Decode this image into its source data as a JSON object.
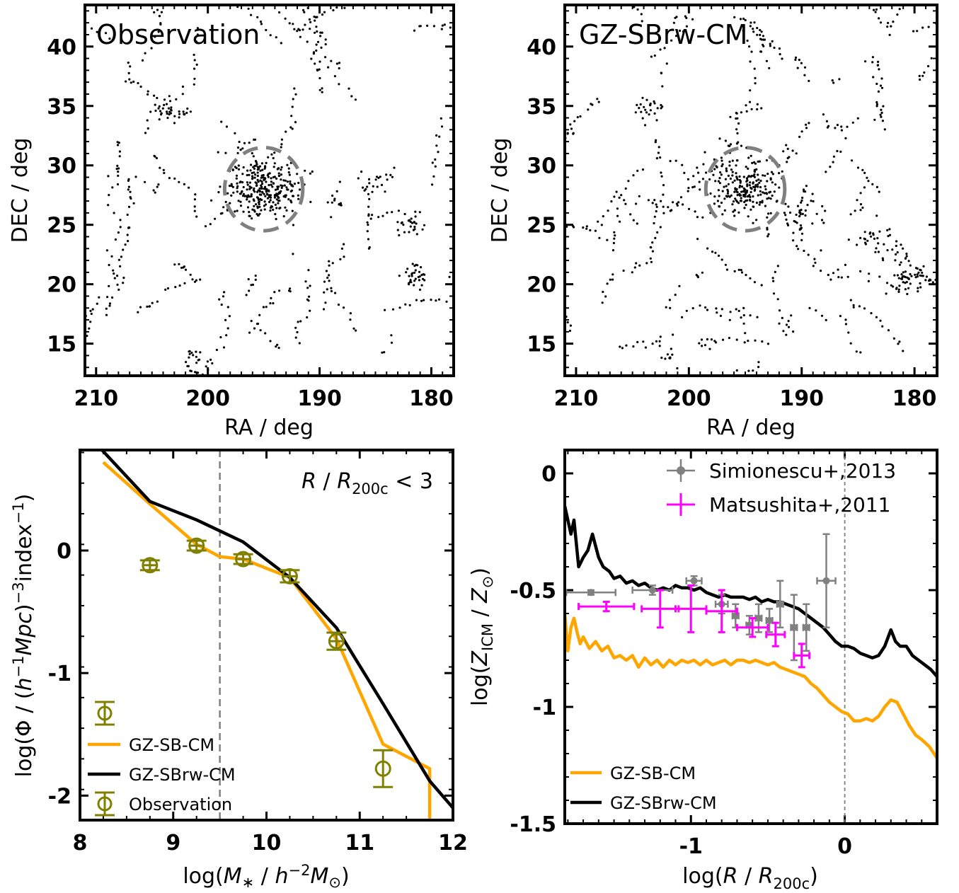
{
  "figure": {
    "panels": {
      "obs_map": {
        "title": "Observation"
      },
      "model_map": {
        "title": "GZ-SBrw-CM"
      },
      "smf": {
        "annotation": "R / R200c < 3"
      },
      "metal": {}
    }
  },
  "chart_data": [
    {
      "id": "obs_map",
      "type": "scatter",
      "title": "Observation",
      "xlabel": "RA / deg",
      "ylabel": "DEC / deg",
      "xlim": [
        211,
        178
      ],
      "ylim": [
        12.3,
        43.5
      ],
      "xticks": [
        210,
        200,
        190,
        180
      ],
      "yticks": [
        15,
        20,
        25,
        30,
        35,
        40
      ],
      "circle": {
        "center": [
          195,
          28
        ],
        "radius": 3.5,
        "style": "dashed",
        "color": "#808080"
      },
      "clusters": [
        {
          "center": [
            195,
            28
          ],
          "n": 260,
          "spread": 1.3
        },
        {
          "center": [
            203.5,
            34.5
          ],
          "n": 30,
          "spread": 0.6
        },
        {
          "center": [
            181.5,
            20.7
          ],
          "n": 30,
          "spread": 0.5
        },
        {
          "center": [
            182,
            25.2
          ],
          "n": 22,
          "spread": 0.5
        },
        {
          "center": [
            185,
            28.5
          ],
          "n": 20,
          "spread": 0.5
        },
        {
          "center": [
            201,
            13.8
          ],
          "n": 14,
          "spread": 0.4
        },
        {
          "center": [
            188.5,
            26.8
          ],
          "n": 12,
          "spread": 0.4
        }
      ],
      "field_points": 520,
      "color": "#000000"
    },
    {
      "id": "model_map",
      "type": "scatter",
      "title": "GZ-SBrw-CM",
      "xlabel": "RA / deg",
      "ylabel": "DEC / deg",
      "xlim": [
        211,
        178
      ],
      "ylim": [
        12.3,
        43.5
      ],
      "xticks": [
        210,
        200,
        190,
        180
      ],
      "yticks": [
        15,
        20,
        25,
        30,
        35,
        40
      ],
      "circle": {
        "center": [
          195,
          28
        ],
        "radius": 3.5,
        "style": "dashed",
        "color": "#808080"
      },
      "clusters": [
        {
          "center": [
            195,
            28
          ],
          "n": 200,
          "spread": 1.1
        },
        {
          "center": [
            203.5,
            34.8
          ],
          "n": 25,
          "spread": 0.5
        },
        {
          "center": [
            181,
            20.3
          ],
          "n": 45,
          "spread": 0.7
        },
        {
          "center": [
            183.5,
            23.5
          ],
          "n": 25,
          "spread": 0.8
        },
        {
          "center": [
            190,
            26
          ],
          "n": 40,
          "spread": 1.2
        },
        {
          "center": [
            201.5,
            13.8
          ],
          "n": 10,
          "spread": 0.4
        }
      ],
      "field_points": 600,
      "color": "#000000"
    },
    {
      "id": "smf",
      "type": "line",
      "xlabel": "log(M* / h^-2 M⊙)",
      "ylabel": "log(Φ / (h^-1 Mpc)^-3 index^-1)",
      "xlim": [
        8,
        12
      ],
      "ylim": [
        -2.2,
        0.82
      ],
      "xticks": [
        8,
        9,
        10,
        11,
        12
      ],
      "yticks": [
        0,
        -1,
        -2
      ],
      "vline": {
        "x": 9.5,
        "style": "dashed",
        "color": "#808080"
      },
      "series": [
        {
          "name": "GZ-SB-CM",
          "color": "#FFA500",
          "x": [
            8.25,
            8.75,
            9.25,
            9.5,
            9.75,
            10.25,
            10.75,
            11.25,
            11.75,
            11.75
          ],
          "y": [
            0.72,
            0.38,
            0.05,
            -0.05,
            -0.07,
            -0.22,
            -0.72,
            -1.58,
            -1.78,
            -2.2
          ]
        },
        {
          "name": "GZ-SBrw-CM",
          "color": "#000000",
          "x": [
            8.2,
            8.75,
            9.25,
            9.75,
            10.25,
            10.75,
            11.25,
            11.75,
            12.0
          ],
          "y": [
            0.85,
            0.4,
            0.25,
            0.07,
            -0.22,
            -0.63,
            -1.25,
            -1.88,
            -2.1
          ]
        },
        {
          "name": "Observation",
          "color": "#808000",
          "marker": "open-circle",
          "x": [
            8.75,
            9.25,
            9.75,
            10.25,
            10.75,
            11.25
          ],
          "y": [
            -0.12,
            0.04,
            -0.07,
            -0.21,
            -0.74,
            -1.78
          ],
          "yerr": [
            0.04,
            0.04,
            0.04,
            0.05,
            0.07,
            0.15
          ],
          "xerr": [
            0.08,
            0.08,
            0.08,
            0.08,
            0.08,
            0.0
          ]
        }
      ],
      "legend": {
        "placement": "lower-left",
        "entries": [
          "",
          "GZ-SB-CM",
          "GZ-SBrw-CM",
          "Observation"
        ]
      },
      "annotation": "R / R200c < 3"
    },
    {
      "id": "metal",
      "type": "line",
      "xlabel": "log(R / R200c)",
      "ylabel": "log(Z_ICM / Z⊙)",
      "xlim": [
        -1.82,
        0.6
      ],
      "ylim": [
        -1.5,
        0.1
      ],
      "xticks": [
        -1,
        0
      ],
      "yticks": [
        0,
        -0.5,
        -1,
        -1.5
      ],
      "ytick_labels": [
        "0",
        "-0.5",
        "-1",
        "-1.5"
      ],
      "vline": {
        "x": 0,
        "style": "dashed",
        "color": "#808080"
      },
      "series": [
        {
          "name": "GZ-SBrw-CM",
          "color": "#000000",
          "x": [
            -1.82,
            -1.78,
            -1.76,
            -1.73,
            -1.7,
            -1.67,
            -1.64,
            -1.6,
            -1.57,
            -1.53,
            -1.5,
            -1.46,
            -1.42,
            -1.38,
            -1.34,
            -1.3,
            -1.26,
            -1.22,
            -1.18,
            -1.14,
            -1.1,
            -1.06,
            -1.02,
            -0.98,
            -0.94,
            -0.9,
            -0.86,
            -0.82,
            -0.78,
            -0.74,
            -0.7,
            -0.66,
            -0.62,
            -0.58,
            -0.54,
            -0.5,
            -0.46,
            -0.42,
            -0.38,
            -0.34,
            -0.3,
            -0.26,
            -0.22,
            -0.18,
            -0.14,
            -0.1,
            -0.06,
            -0.02,
            0.02,
            0.06,
            0.1,
            0.14,
            0.18,
            0.22,
            0.26,
            0.3,
            0.33,
            0.36,
            0.4,
            0.44,
            0.48,
            0.52,
            0.56,
            0.6
          ],
          "y": [
            -0.14,
            -0.26,
            -0.2,
            -0.4,
            -0.36,
            -0.33,
            -0.26,
            -0.36,
            -0.4,
            -0.42,
            -0.45,
            -0.44,
            -0.47,
            -0.46,
            -0.48,
            -0.47,
            -0.49,
            -0.5,
            -0.49,
            -0.5,
            -0.48,
            -0.49,
            -0.49,
            -0.5,
            -0.49,
            -0.51,
            -0.52,
            -0.53,
            -0.52,
            -0.53,
            -0.53,
            -0.53,
            -0.54,
            -0.53,
            -0.55,
            -0.54,
            -0.55,
            -0.55,
            -0.56,
            -0.57,
            -0.58,
            -0.6,
            -0.62,
            -0.64,
            -0.66,
            -0.69,
            -0.72,
            -0.74,
            -0.74,
            -0.75,
            -0.77,
            -0.78,
            -0.79,
            -0.78,
            -0.74,
            -0.67,
            -0.72,
            -0.74,
            -0.74,
            -0.78,
            -0.8,
            -0.82,
            -0.84,
            -0.87
          ]
        },
        {
          "name": "GZ-SB-CM",
          "color": "#FFA500",
          "x": [
            -1.82,
            -1.8,
            -1.78,
            -1.76,
            -1.74,
            -1.72,
            -1.7,
            -1.66,
            -1.62,
            -1.58,
            -1.54,
            -1.5,
            -1.46,
            -1.42,
            -1.38,
            -1.34,
            -1.3,
            -1.26,
            -1.22,
            -1.18,
            -1.14,
            -1.1,
            -1.06,
            -1.02,
            -0.98,
            -0.94,
            -0.9,
            -0.86,
            -0.82,
            -0.78,
            -0.74,
            -0.7,
            -0.66,
            -0.62,
            -0.58,
            -0.54,
            -0.5,
            -0.46,
            -0.42,
            -0.38,
            -0.34,
            -0.3,
            -0.26,
            -0.22,
            -0.18,
            -0.14,
            -0.1,
            -0.06,
            -0.02,
            0.02,
            0.06,
            0.1,
            0.14,
            0.18,
            0.22,
            0.26,
            0.3,
            0.34,
            0.38,
            0.42,
            0.46,
            0.5,
            0.55,
            0.6
          ],
          "y": [
            -0.6,
            -0.76,
            -0.66,
            -0.62,
            -0.68,
            -0.73,
            -0.7,
            -0.75,
            -0.72,
            -0.76,
            -0.74,
            -0.79,
            -0.78,
            -0.8,
            -0.78,
            -0.83,
            -0.79,
            -0.82,
            -0.8,
            -0.83,
            -0.8,
            -0.82,
            -0.8,
            -0.81,
            -0.8,
            -0.82,
            -0.8,
            -0.82,
            -0.81,
            -0.8,
            -0.82,
            -0.8,
            -0.8,
            -0.81,
            -0.8,
            -0.81,
            -0.82,
            -0.81,
            -0.83,
            -0.84,
            -0.85,
            -0.86,
            -0.87,
            -0.9,
            -0.92,
            -0.95,
            -0.98,
            -1.0,
            -1.02,
            -1.03,
            -1.06,
            -1.06,
            -1.05,
            -1.06,
            -1.04,
            -1.0,
            -0.97,
            -0.98,
            -1.03,
            -1.08,
            -1.12,
            -1.14,
            -1.17,
            -1.22
          ]
        },
        {
          "name": "Simionescu+,2013",
          "color": "#808080",
          "marker": "dot",
          "x": [
            -1.65,
            -1.25,
            -0.98,
            -0.8,
            -0.71,
            -0.62,
            -0.56,
            -0.49,
            -0.42,
            -0.33,
            -0.25,
            -0.12
          ],
          "y": [
            -0.51,
            -0.5,
            -0.46,
            -0.56,
            -0.61,
            -0.65,
            -0.62,
            -0.63,
            -0.56,
            -0.66,
            -0.66,
            -0.46
          ],
          "xerr_lo": [
            0.16,
            0.13,
            0.05,
            0.04,
            0.02,
            0.02,
            0.02,
            0.02,
            0.02,
            0.02,
            0.02,
            0.06
          ],
          "xerr_hi": [
            0.16,
            0.13,
            0.05,
            0.04,
            0.02,
            0.02,
            0.02,
            0.02,
            0.02,
            0.02,
            0.02,
            0.06
          ],
          "yerr": [
            0.01,
            0.02,
            0.02,
            0.04,
            0.05,
            0.04,
            0.06,
            0.05,
            0.1,
            0.14,
            0.1,
            0.2
          ]
        },
        {
          "name": "Matsushita+,2011",
          "color": "#FF00FF",
          "marker": "none",
          "x": [
            -1.55,
            -1.2,
            -1.0,
            -0.8,
            -0.6,
            -0.45,
            -0.28
          ],
          "y": [
            -0.57,
            -0.58,
            -0.58,
            -0.59,
            -0.66,
            -0.69,
            -0.78
          ],
          "xerr": [
            0.18,
            0.12,
            0.1,
            0.1,
            0.1,
            0.06,
            0.05
          ],
          "yerr": [
            0.02,
            0.08,
            0.1,
            0.09,
            0.04,
            0.05,
            0.05
          ]
        }
      ],
      "legends": {
        "upper": {
          "placement": "top-right",
          "entries": [
            "Simionescu+,2013",
            "Matsushita+,2011"
          ]
        },
        "lower": {
          "placement": "lower-left",
          "entries": [
            "GZ-SB-CM",
            "GZ-SBrw-CM"
          ]
        }
      }
    }
  ]
}
